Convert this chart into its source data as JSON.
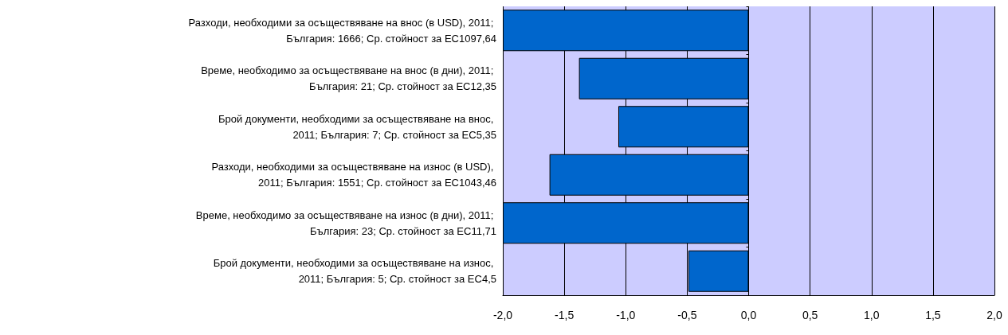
{
  "chart_data": {
    "type": "bar",
    "orientation": "horizontal",
    "categories": [
      "Разходи, необходими за осъществяване на внос (в USD), 2011; България: 1666; Ср. стойност за ЕС1097,64",
      "Време, необходимо за осъществяване на внос (в дни), 2011; България: 21; Ср. стойност за ЕС12,35",
      "Брой документи, необходими за осъществяване на внос, 2011; България: 7; Ср. стойност за ЕС5,35",
      "Разходи, необходими за осъществяване на износ (в USD), 2011; България: 1551; Ср. стойност за ЕС1043,46",
      "Време, необходимо за осъществяване на износ (в дни), 2011; България: 23; Ср. стойност за ЕС11,71",
      "Брой документи, необходими за осъществяване на износ, 2011; България: 5; Ср. стойност за ЕС4,5"
    ],
    "series": [
      {
        "color": "#0066cc",
        "values": [
          -2.0,
          -1.38,
          -1.06,
          -1.62,
          -2.0,
          -0.49
        ]
      }
    ],
    "xlim": [
      -2,
      2
    ],
    "xticks": [
      {
        "value": -2,
        "label": "-2,0"
      },
      {
        "value": -1.5,
        "label": "-1,5"
      },
      {
        "value": -1,
        "label": "-1,0"
      },
      {
        "value": -0.5,
        "label": "-0,5"
      },
      {
        "value": 0,
        "label": "0,0"
      },
      {
        "value": 0.5,
        "label": "0,5"
      },
      {
        "value": 1,
        "label": "1,0"
      },
      {
        "value": 1.5,
        "label": "1,5"
      },
      {
        "value": 2,
        "label": "2,0"
      }
    ],
    "grid": "x"
  }
}
